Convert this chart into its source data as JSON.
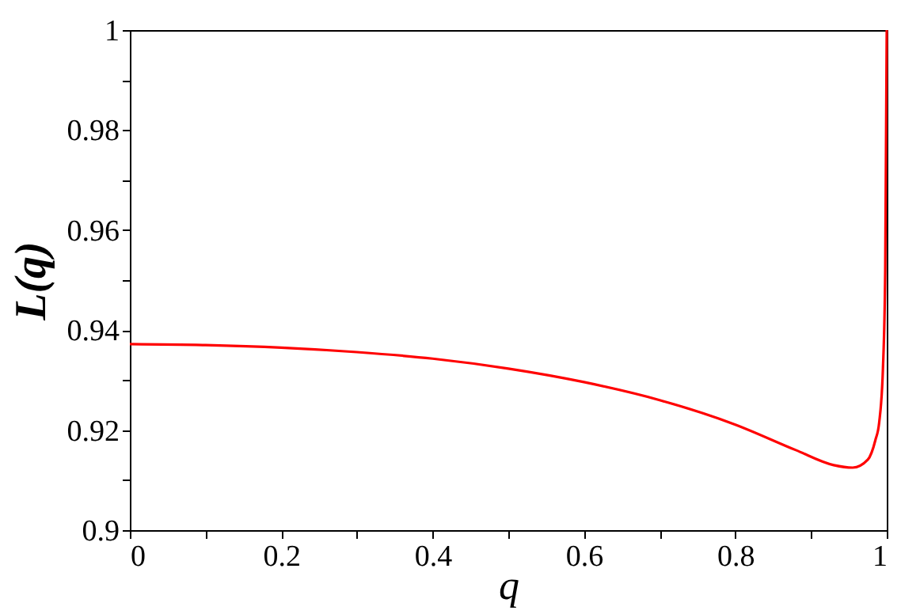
{
  "chart_data": {
    "type": "line",
    "xlabel": "q",
    "ylabel": "L(q)",
    "x": [
      0,
      0.1,
      0.2,
      0.3,
      0.4,
      0.5,
      0.6,
      0.7,
      0.8,
      0.88,
      0.93,
      0.955,
      0.975,
      0.985,
      0.99,
      0.995,
      0.998,
      1.0
    ],
    "series": [
      {
        "color": "#ff0000",
        "values": [
          0.9372,
          0.937,
          0.9365,
          0.9356,
          0.9343,
          0.9323,
          0.9296,
          0.926,
          0.9211,
          0.916,
          0.913,
          0.9125,
          0.9141,
          0.918,
          0.9215,
          0.9324,
          0.952,
          1.0
        ]
      }
    ],
    "xlim": [
      0,
      1
    ],
    "ylim": [
      0.9,
      1
    ],
    "xticks": [
      0,
      {
        "value": 0.1,
        "label": null
      },
      0.2,
      {
        "value": 0.3,
        "label": null
      },
      0.4,
      {
        "value": 0.5,
        "label": null
      },
      0.6,
      {
        "value": 0.7,
        "label": null
      },
      0.8,
      {
        "value": 0.9,
        "label": null
      },
      1
    ],
    "yticks": [
      0.9,
      {
        "value": 0.91,
        "label": null
      },
      0.92,
      {
        "value": 0.93,
        "label": null
      },
      0.94,
      {
        "value": 0.95,
        "label": null
      },
      0.96,
      {
        "value": 0.97,
        "label": null
      },
      0.98,
      {
        "value": 0.99,
        "label": null
      },
      1
    ],
    "grid": false,
    "marker": "none",
    "line_style": "solid"
  }
}
